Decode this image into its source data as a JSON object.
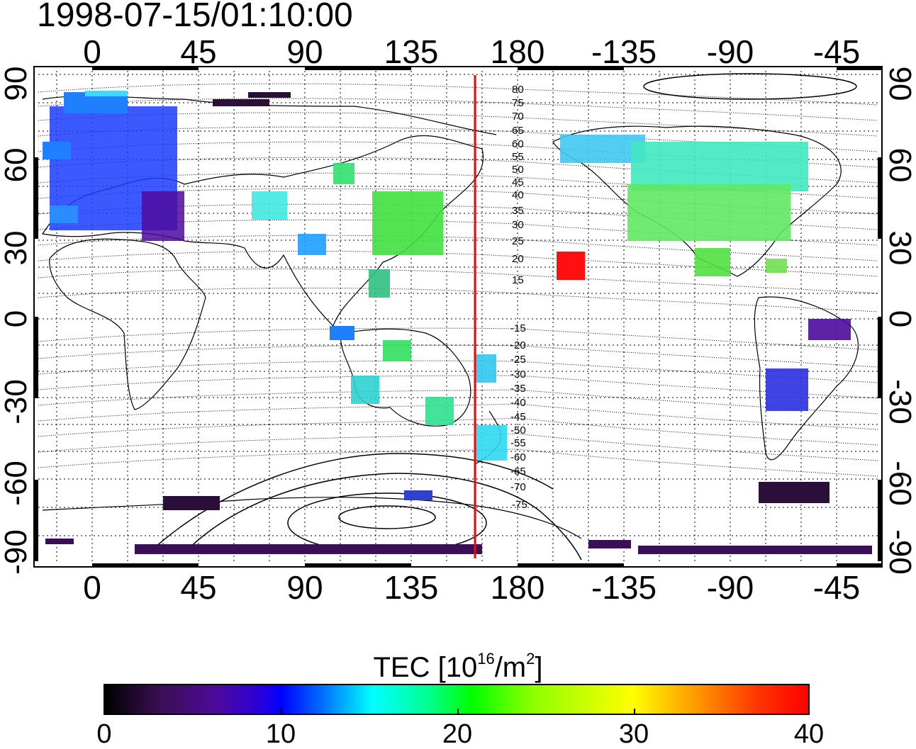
{
  "timestamp": "1998-07-15/01:10:00",
  "map": {
    "lon_ticks": [
      "0",
      "45",
      "90",
      "135",
      "180",
      "-135",
      "-90",
      "-45"
    ],
    "lat_ticks": [
      "90",
      "60",
      "30",
      "0",
      "-30",
      "-60",
      "-90"
    ],
    "magnetic_lat_labels_north": [
      "80",
      "75",
      "70",
      "65",
      "60",
      "55",
      "50",
      "45",
      "40",
      "35",
      "30",
      "25",
      "20",
      "15"
    ],
    "magnetic_lat_labels_south": [
      "-15",
      "-20",
      "-25",
      "-30",
      "-35",
      "-40",
      "-45",
      "-50",
      "-55",
      "-60",
      "-65",
      "-70",
      "-75"
    ],
    "terminator_line_color": "#ff0000",
    "grid": true
  },
  "colorbar": {
    "title": "TEC  [10",
    "title_sup1": "16",
    "title_mid": "/m",
    "title_sup2": "2",
    "title_end": "]",
    "ticks": [
      "0",
      "10",
      "20",
      "30",
      "40"
    ],
    "range": [
      0,
      40
    ],
    "colors": [
      "#000000",
      "#4c0a9c",
      "#0000ff",
      "#00ffff",
      "#00ff00",
      "#ffff00",
      "#ff0000"
    ]
  }
}
